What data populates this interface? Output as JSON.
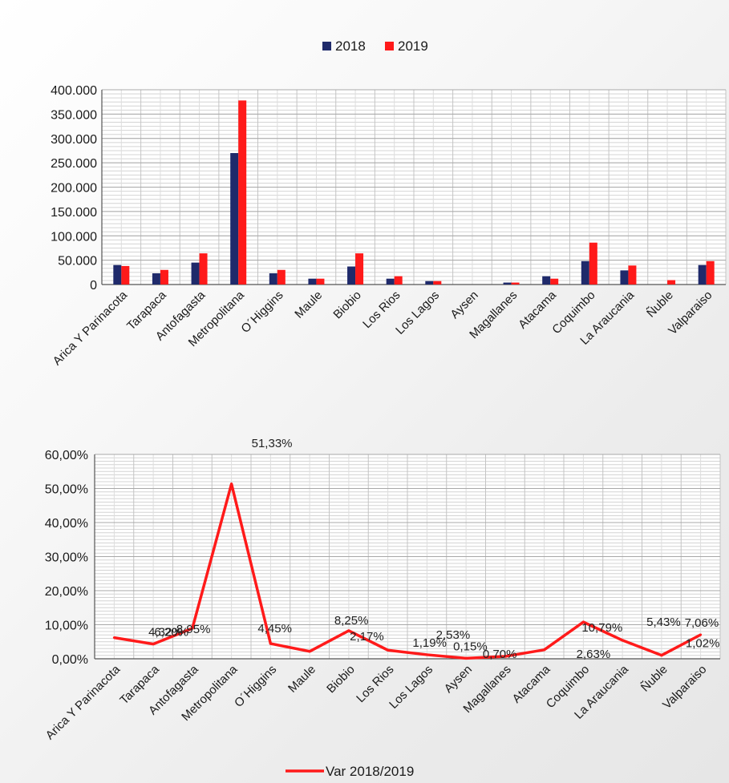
{
  "chart_data": [
    {
      "type": "bar",
      "categories": [
        "Arica Y Parinacota",
        "Tarapaca",
        "Antofagasta",
        "Metropolitana",
        "O´Higgins",
        "Maule",
        "Biobio",
        "Los Rios",
        "Los Lagos",
        "Aysen",
        "Magallanes",
        "Atacama",
        "Coquimbo",
        "La Araucania",
        "Ñuble",
        "Valparaiso"
      ],
      "series": [
        {
          "name": "2018",
          "color": "#1f2a6b",
          "values": [
            40000,
            23000,
            45000,
            270000,
            23000,
            12000,
            37000,
            12000,
            7000,
            0,
            4000,
            17000,
            48000,
            29000,
            0,
            40000
          ]
        },
        {
          "name": "2019",
          "color": "#ff1a1a",
          "values": [
            38000,
            30000,
            64000,
            378000,
            30000,
            12000,
            64000,
            17000,
            7000,
            0,
            4000,
            12000,
            86000,
            39000,
            9000,
            48000
          ]
        }
      ],
      "ylim": [
        0,
        400000
      ],
      "yticks": [
        "0",
        "50.000",
        "100.000",
        "150.000",
        "200.000",
        "250.000",
        "300.000",
        "350.000",
        "400.000"
      ],
      "grid": true,
      "legend": "top-center"
    },
    {
      "type": "line",
      "categories": [
        "Arica Y Parinacota",
        "Tarapaca",
        "Antofagasta",
        "Metropolitana",
        "O´Higgins",
        "Maule",
        "Biobio",
        "Los Rios",
        "Los Lagos",
        "Aysen",
        "Magallanes",
        "Atacama",
        "Coquimbo",
        "La Araucania",
        "Ñuble",
        "Valparaiso"
      ],
      "series": [
        {
          "name": "Var 2018/2019",
          "color": "#ff1a1a",
          "values": [
            6.2,
            4.32,
            8.95,
            51.33,
            4.45,
            2.17,
            8.25,
            2.53,
            1.19,
            0.15,
            0.7,
            2.63,
            10.79,
            5.43,
            1.02,
            7.06
          ],
          "labels": [
            "6,20%",
            "4,32%",
            "8,95%",
            "51,33%",
            "4,45%",
            "2,17%",
            "8,25%",
            "2,53%",
            "1,19%",
            "0,15%",
            "0,70%",
            "2,63%",
            "10,79%",
            "5,43%",
            "1,02%",
            "7,06%"
          ]
        }
      ],
      "ylim": [
        0,
        60
      ],
      "yticks": [
        "0,00%",
        "10,00%",
        "20,00%",
        "30,00%",
        "40,00%",
        "50,00%",
        "60,00%"
      ],
      "grid": true,
      "legend": "bottom-center"
    }
  ]
}
